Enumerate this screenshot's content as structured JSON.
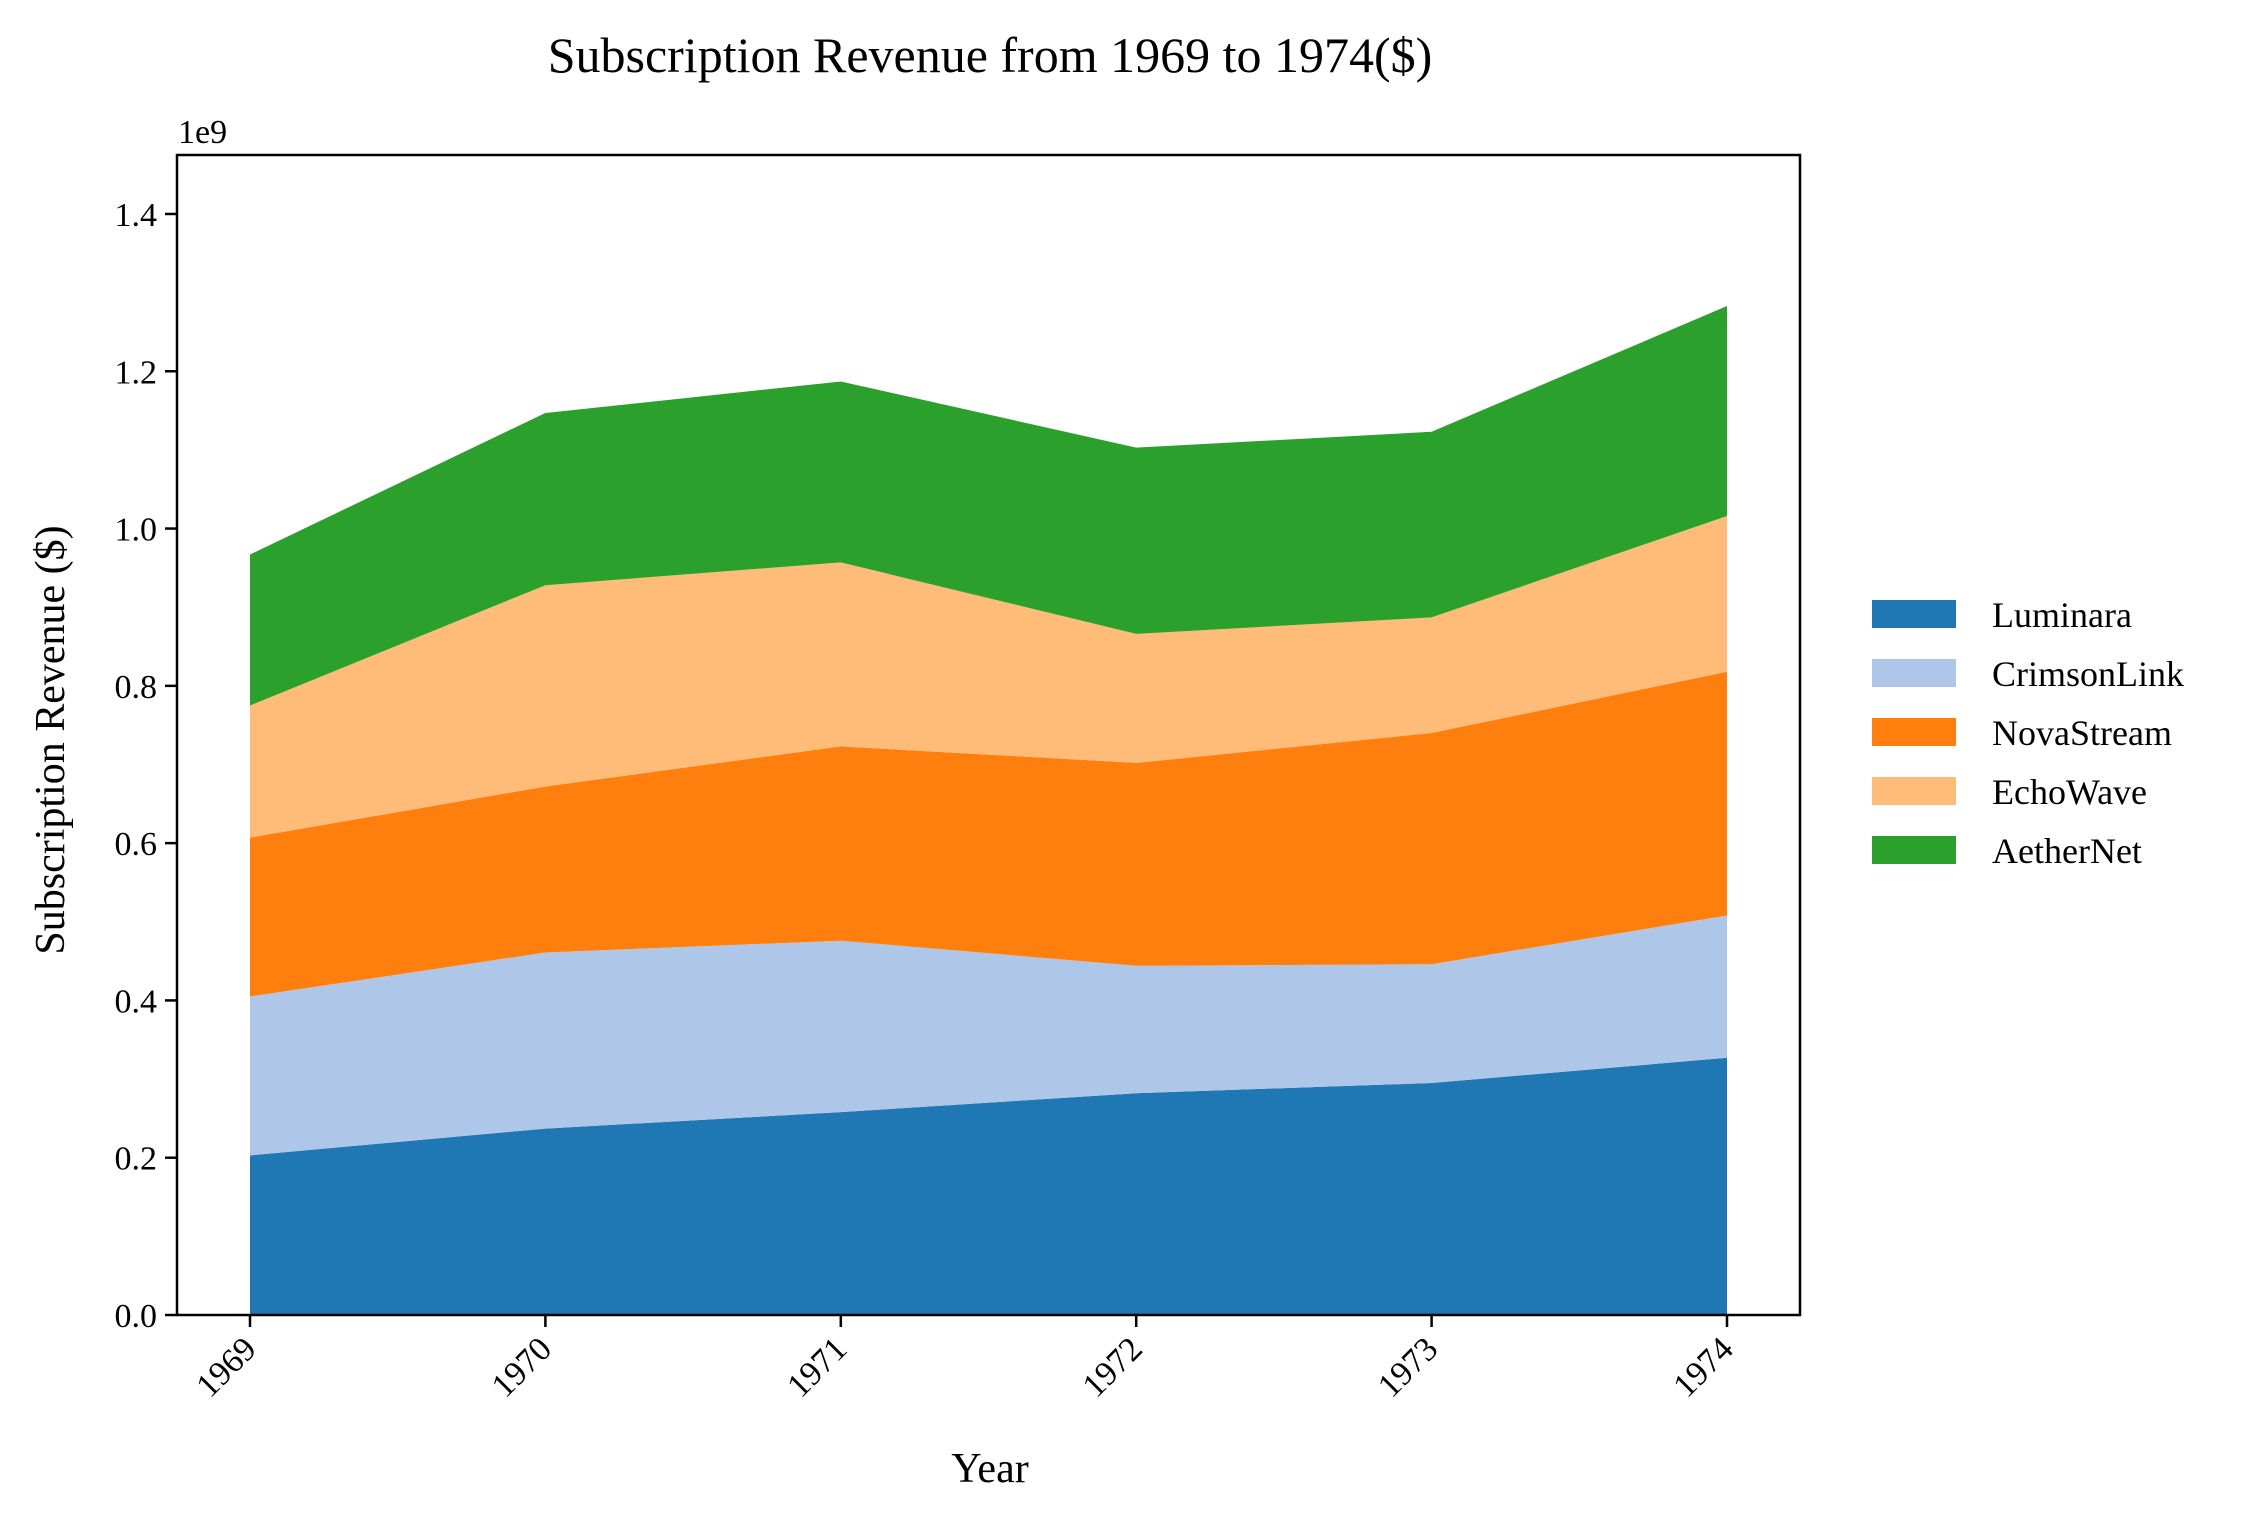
{
  "chart_data": {
    "type": "area",
    "stacked": true,
    "title": "Subscription Revenue from 1969 to 1974($)",
    "xlabel": "Year",
    "ylabel": "Subscription Revenue ($)",
    "y_offset_text": "1e9",
    "categories": [
      "1969",
      "1970",
      "1971",
      "1972",
      "1973",
      "1974"
    ],
    "ylim": [
      0,
      1475000000.0
    ],
    "yticks": [
      0,
      200000000.0,
      400000000.0,
      600000000.0,
      800000000.0,
      1000000000.0,
      1200000000.0,
      1400000000.0
    ],
    "ytick_labels": [
      "0.0",
      "0.2",
      "0.4",
      "0.6",
      "0.8",
      "1.0",
      "1.2",
      "1.4"
    ],
    "grid": false,
    "legend_position": "center-right, outside plot",
    "series": [
      {
        "name": "Luminara",
        "color": "#1f77b4",
        "values": [
          203000000,
          237000000,
          258000000,
          282000000,
          295000000,
          327000000
        ]
      },
      {
        "name": "CrimsonLink",
        "color": "#aec7e8",
        "values": [
          202000000,
          224000000,
          218000000,
          162000000,
          151000000,
          181000000
        ]
      },
      {
        "name": "NovaStream",
        "color": "#ff7f0e",
        "values": [
          202000000,
          211000000,
          247000000,
          258000000,
          294000000,
          310000000
        ]
      },
      {
        "name": "EchoWave",
        "color": "#ffbb78",
        "values": [
          168000000,
          256000000,
          234000000,
          164000000,
          147000000,
          198000000
        ]
      },
      {
        "name": "AetherNet",
        "color": "#2ca02c",
        "values": [
          192000000,
          219000000,
          230000000,
          237000000,
          236000000,
          267000000
        ]
      }
    ]
  }
}
